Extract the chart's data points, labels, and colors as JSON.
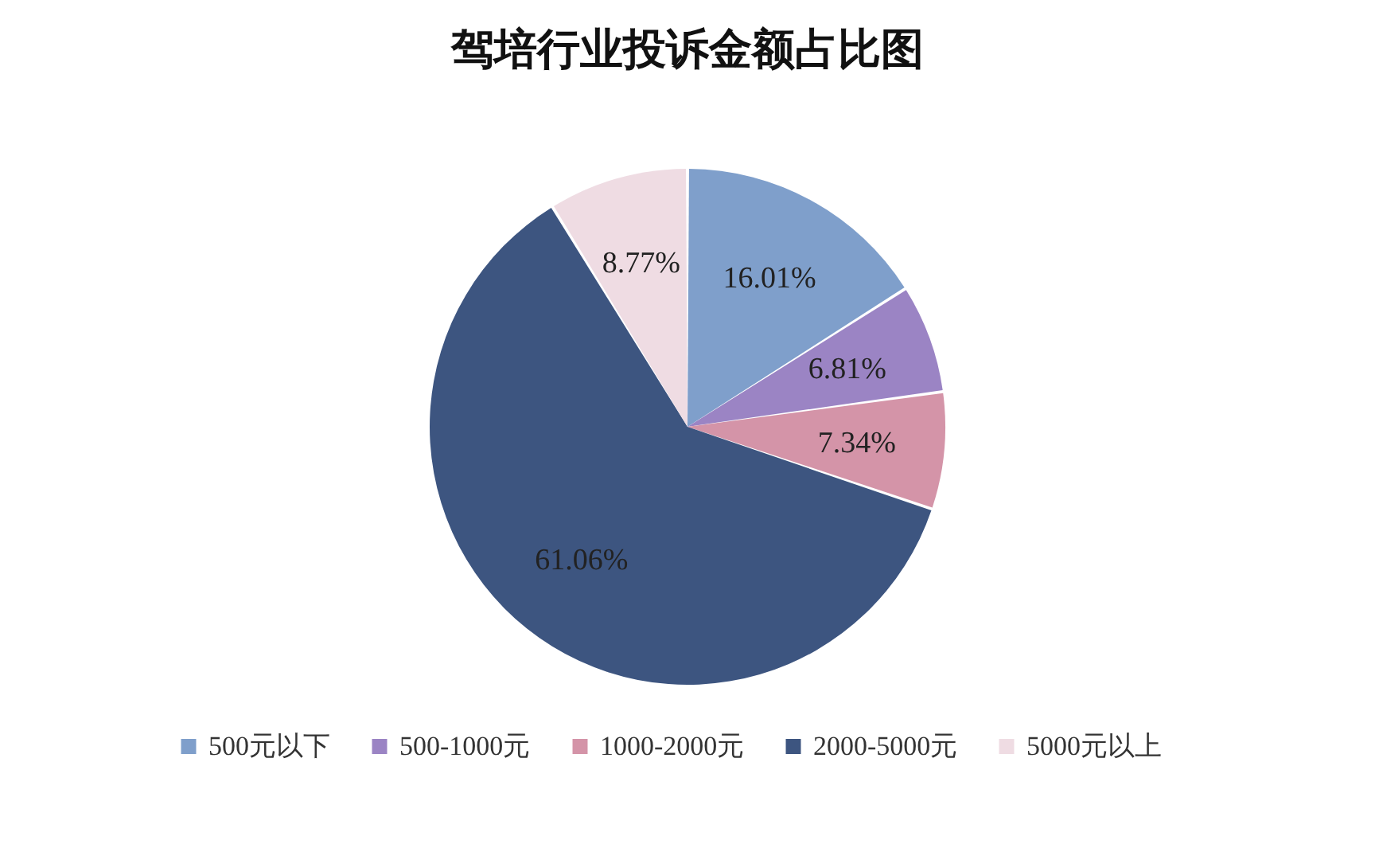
{
  "chart_data": {
    "type": "pie",
    "title": "驾培行业投诉金额占比图",
    "categories": [
      "500元以下",
      "500-1000元",
      "1000-2000元",
      "2000-5000元",
      "5000元以上"
    ],
    "values": [
      16.01,
      6.81,
      7.34,
      61.06,
      8.77
    ],
    "value_labels": [
      "16.01%",
      "6.81%",
      "7.34%",
      "61.06%",
      "8.77%"
    ],
    "colors": [
      "#7f9fcb",
      "#9b84c4",
      "#d494a8",
      "#3d5580",
      "#efdce3"
    ],
    "legend": "bottom"
  }
}
